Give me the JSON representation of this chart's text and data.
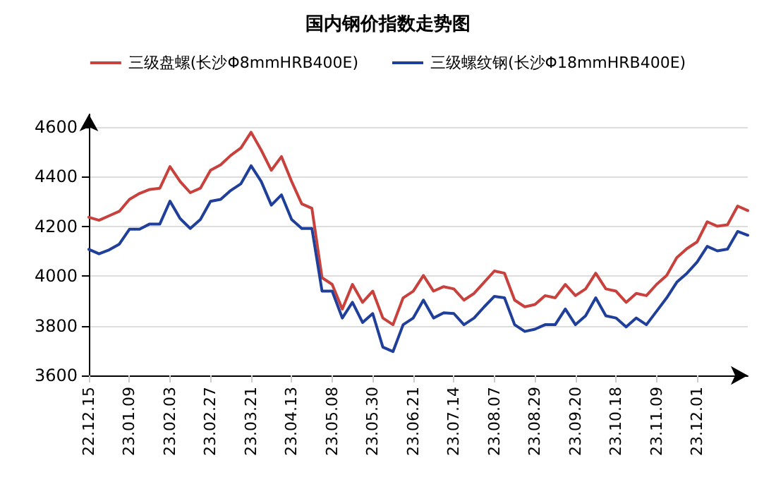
{
  "chart_data": {
    "type": "line",
    "title": "国内钢价指数走势图",
    "categories": [
      "22.12.15",
      null,
      null,
      null,
      "23.01.09",
      null,
      null,
      null,
      "23.02.03",
      null,
      null,
      null,
      "23.02.27",
      null,
      null,
      null,
      "23.03.21",
      null,
      null,
      null,
      "23.04.13",
      null,
      null,
      null,
      "23.05.08",
      null,
      null,
      null,
      "23.05.30",
      null,
      null,
      null,
      "23.06.21",
      null,
      null,
      null,
      "23.07.14",
      null,
      null,
      null,
      "23.08.07",
      null,
      null,
      null,
      "23.08.29",
      null,
      null,
      null,
      "23.09.20",
      null,
      null,
      null,
      "23.10.18",
      null,
      null,
      null,
      "23.11.09",
      null,
      null,
      null,
      "23.12.01",
      null,
      null,
      null,
      null,
      null
    ],
    "series": [
      {
        "name": "三级盘螺(长沙Φ8mmHRB400E)",
        "color": "#c8413d",
        "values": [
          4236,
          4224,
          4242,
          4260,
          4308,
          4332,
          4348,
          4353,
          4440,
          4380,
          4335,
          4353,
          4425,
          4447,
          4485,
          4515,
          4578,
          4506,
          4425,
          4480,
          4380,
          4290,
          4272,
          3993,
          3966,
          3867,
          3966,
          3894,
          3939,
          3831,
          3804,
          3912,
          3939,
          4002,
          3939,
          3957,
          3948,
          3903,
          3930,
          3975,
          4020,
          4011,
          3903,
          3876,
          3885,
          3921,
          3912,
          3966,
          3921,
          3948,
          4011,
          3948,
          3939,
          3894,
          3930,
          3921,
          3966,
          4002,
          4074,
          4110,
          4137,
          4218,
          4200,
          4206,
          4281,
          4263
        ]
      },
      {
        "name": "三级螺纹钢(长沙Φ18mmHRB400E)",
        "color": "#1f3f9a",
        "values": [
          4107,
          4089,
          4105,
          4128,
          4188,
          4188,
          4209,
          4209,
          4301,
          4231,
          4191,
          4227,
          4300,
          4308,
          4344,
          4371,
          4443,
          4380,
          4285,
          4326,
          4227,
          4191,
          4191,
          3939,
          3939,
          3831,
          3894,
          3813,
          3849,
          3714,
          3696,
          3804,
          3831,
          3903,
          3831,
          3852,
          3849,
          3804,
          3831,
          3876,
          3918,
          3912,
          3804,
          3777,
          3786,
          3804,
          3804,
          3867,
          3804,
          3840,
          3912,
          3840,
          3831,
          3795,
          3831,
          3804,
          3858,
          3912,
          3975,
          4011,
          4056,
          4119,
          4101,
          4108,
          4179,
          4164
        ]
      }
    ],
    "ylim": [
      3600,
      4650
    ],
    "yticks": [
      3600,
      3800,
      4000,
      4200,
      4400,
      4600
    ],
    "grid": "y",
    "legend": "top",
    "marker": "none",
    "line_style": "solid"
  }
}
